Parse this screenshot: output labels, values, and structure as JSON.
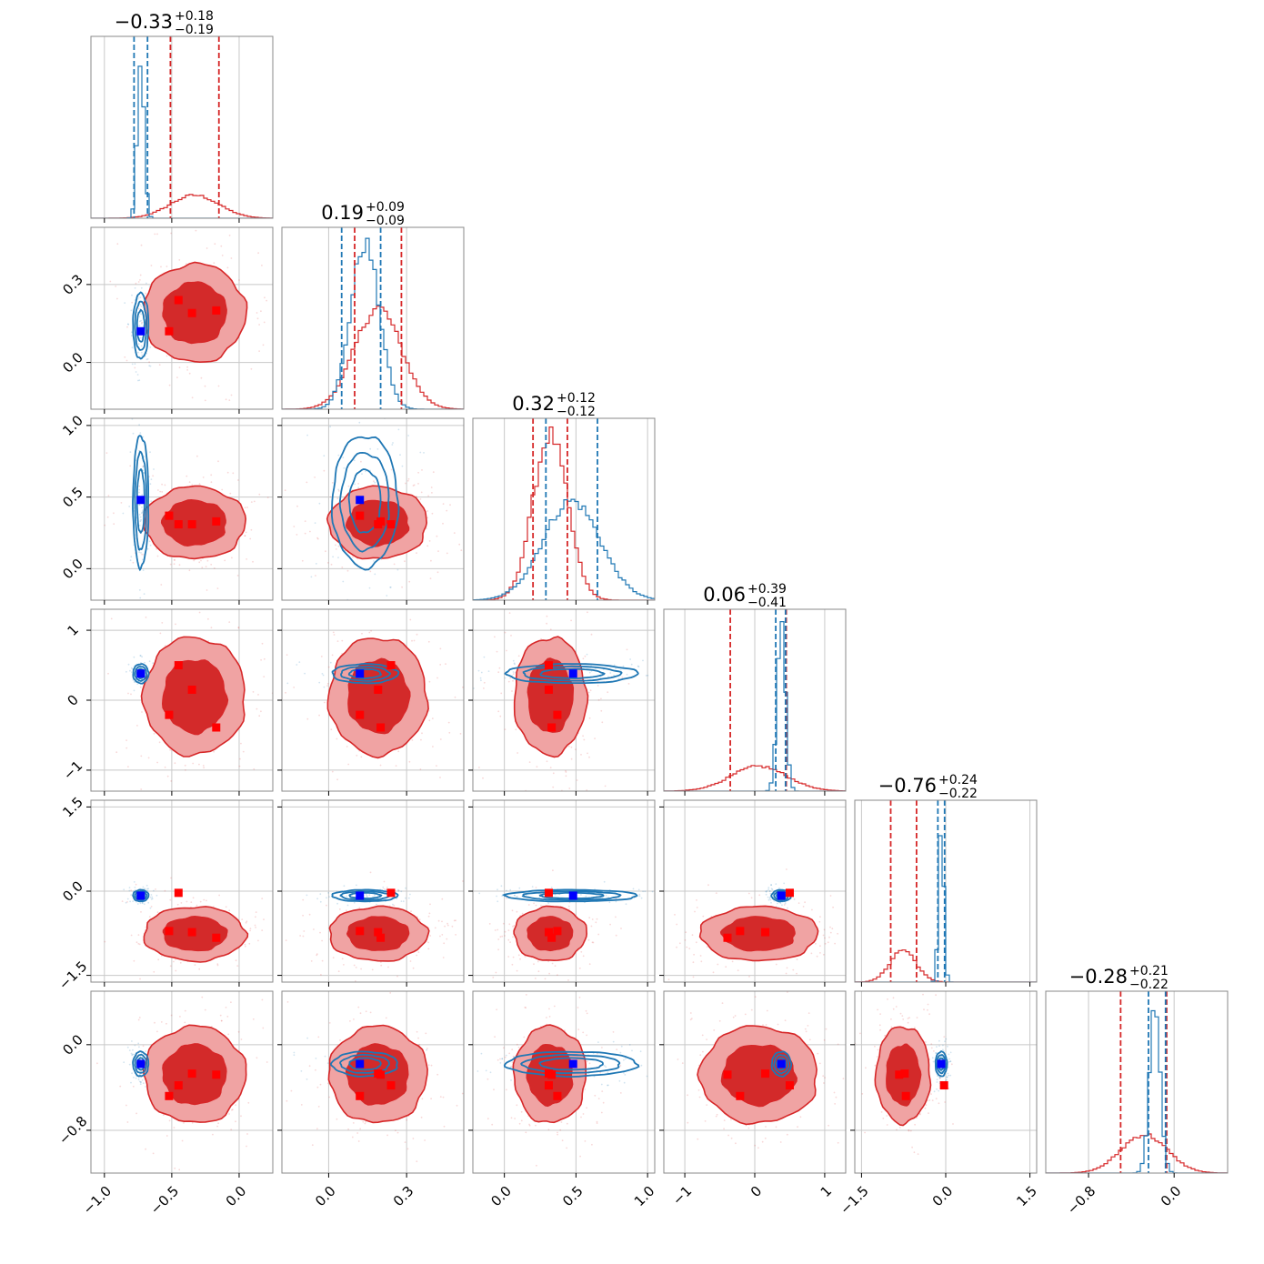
{
  "colors": {
    "red": "#d62728",
    "red_fill_outer": "#f0a3a3",
    "red_fill_inner": "#d32a2a",
    "blue": "#1f77b4",
    "blue_marker": "#0000ff",
    "red_marker": "#ff0000",
    "grid": "#c8c8c8",
    "frame": "#888888"
  },
  "chart_data": {
    "type": "corner",
    "n_params": 6,
    "titles": [
      {
        "value": "−0.33",
        "plus": "+0.18",
        "minus": "−0.19"
      },
      {
        "value": "0.19",
        "plus": "+0.09",
        "minus": "−0.09"
      },
      {
        "value": "0.32",
        "plus": "+0.12",
        "minus": "−0.12"
      },
      {
        "value": "0.06",
        "plus": "+0.39",
        "minus": "−0.41"
      },
      {
        "value": "−0.76",
        "plus": "+0.24",
        "minus": "−0.22"
      },
      {
        "value": "−0.28",
        "plus": "+0.21",
        "minus": "−0.22"
      }
    ],
    "ranges": [
      [
        -1.1,
        0.25
      ],
      [
        -0.18,
        0.52
      ],
      [
        -0.22,
        1.05
      ],
      [
        -1.3,
        1.3
      ],
      [
        -1.62,
        1.62
      ],
      [
        -1.2,
        0.5
      ]
    ],
    "ticks": [
      {
        "values": [
          -1.0,
          -0.5,
          0.0
        ],
        "labels": [
          "−1.0",
          "−0.5",
          "0.0"
        ]
      },
      {
        "values": [
          0.0,
          0.3
        ],
        "labels": [
          "0.0",
          "0.3"
        ]
      },
      {
        "values": [
          0.0,
          0.5,
          1.0
        ],
        "labels": [
          "0.0",
          "0.5",
          "1.0"
        ]
      },
      {
        "values": [
          -1,
          0,
          1
        ],
        "labels": [
          "−1",
          "0",
          "1"
        ]
      },
      {
        "values": [
          -1.5,
          0.0,
          1.5
        ],
        "labels": [
          "−1.5",
          "0.0",
          "1.5"
        ]
      },
      {
        "values": [
          -0.8,
          0.0
        ],
        "labels": [
          "−0.8",
          "0.0"
        ]
      }
    ],
    "red_posterior": {
      "mean": [
        -0.33,
        0.19,
        0.32,
        0.06,
        -0.76,
        -0.28
      ],
      "std": [
        0.18,
        0.09,
        0.12,
        0.4,
        0.23,
        0.215
      ],
      "quantile_lines": [
        [
          -0.51,
          -0.15
        ],
        [
          0.1,
          0.28
        ],
        [
          0.2,
          0.44
        ],
        [
          -0.35,
          0.45
        ],
        [
          -0.98,
          -0.52
        ],
        [
          -0.5,
          -0.07
        ]
      ]
    },
    "blue_posterior": {
      "mean": [
        -0.73,
        0.14,
        0.47,
        0.38,
        -0.08,
        -0.18
      ],
      "std": [
        0.025,
        0.055,
        0.2,
        0.06,
        0.045,
        0.05
      ],
      "quantile_lines": [
        [
          -0.78,
          -0.68
        ],
        [
          0.05,
          0.2
        ],
        [
          0.29,
          0.65
        ],
        [
          0.3,
          0.44
        ],
        [
          -0.14,
          -0.02
        ],
        [
          -0.24,
          -0.08
        ]
      ]
    },
    "blue_truth_marker": [
      -0.73,
      0.12,
      0.48,
      0.38,
      -0.08,
      -0.18
    ],
    "red_markers": [
      [
        -0.45,
        0.24,
        0.31,
        0.5,
        -0.03,
        -0.38
      ],
      [
        -0.35,
        0.19,
        0.31,
        0.15,
        -0.73,
        -0.27
      ],
      [
        -0.17,
        0.2,
        0.33,
        -0.39,
        -0.83,
        -0.28
      ],
      [
        -0.52,
        0.12,
        0.37,
        -0.21,
        -0.71,
        -0.48
      ]
    ]
  }
}
